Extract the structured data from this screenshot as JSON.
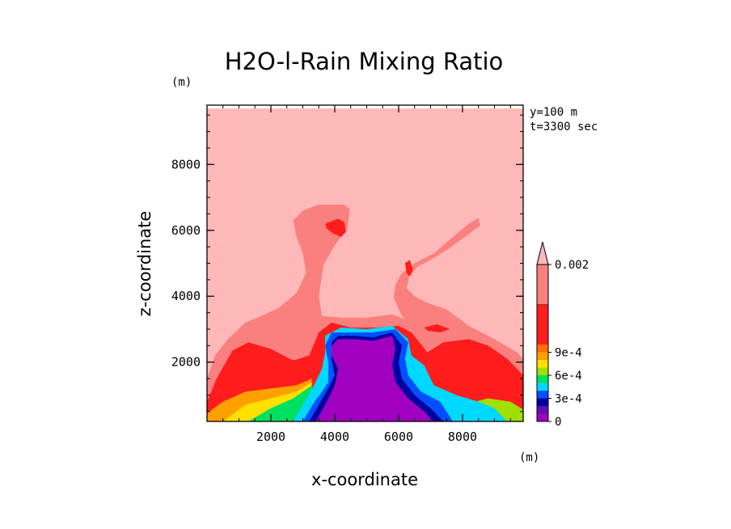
{
  "chart_data": {
    "type": "heatmap",
    "title": "H2O-l-Rain Mixing Ratio",
    "xlabel": "x-coordinate",
    "ylabel": "z-coordinate",
    "x_unit": "(m)",
    "y_unit": "(m)",
    "annotations": [
      "y=100 m",
      "t=3300 sec"
    ],
    "xlim": [
      0,
      10000
    ],
    "ylim": [
      0,
      10000
    ],
    "x_ticks": [
      2000,
      4000,
      6000,
      8000
    ],
    "y_ticks": [
      2000,
      4000,
      6000,
      8000
    ],
    "colorbar": {
      "labels": [
        {
          "text": "0.002",
          "value": 0.002
        },
        {
          "text": "9e-4",
          "value": 0.0009
        },
        {
          "text": "6e-4",
          "value": 0.0006
        },
        {
          "text": "3e-4",
          "value": 0.0003
        },
        {
          "text": "0",
          "value": 0
        }
      ],
      "levels": [
        {
          "upper": 0.0001,
          "color": "#a000c0"
        },
        {
          "upper": 0.0002,
          "color": "#6010b0"
        },
        {
          "upper": 0.0003,
          "color": "#0000a0"
        },
        {
          "upper": 0.0004,
          "color": "#0050ff"
        },
        {
          "upper": 0.0005,
          "color": "#00d8ff"
        },
        {
          "upper": 0.0006,
          "color": "#00e060"
        },
        {
          "upper": 0.0007,
          "color": "#a0e000"
        },
        {
          "upper": 0.0008,
          "color": "#ffe000"
        },
        {
          "upper": 0.0009,
          "color": "#ffa000"
        },
        {
          "upper": 0.001,
          "color": "#ff7000"
        },
        {
          "upper": 0.0015,
          "color": "#ff1c1c"
        },
        {
          "upper": 0.002,
          "color": "#fa8080"
        },
        {
          "upper": null,
          "color": "#ffb8b8"
        }
      ]
    },
    "field_regions": [
      {
        "level": "background",
        "color": "#ffb8b8",
        "polygon": [
          [
            0,
            0
          ],
          [
            10000,
            0
          ],
          [
            10000,
            9700
          ],
          [
            0,
            9700
          ]
        ]
      },
      {
        "level": "pink",
        "color": "#fa8080",
        "polygon": [
          [
            0,
            1500
          ],
          [
            250,
            2200
          ],
          [
            650,
            2700
          ],
          [
            1200,
            3200
          ],
          [
            1700,
            3400
          ],
          [
            2250,
            3650
          ],
          [
            2800,
            4100
          ],
          [
            3100,
            4700
          ],
          [
            3000,
            5300
          ],
          [
            2800,
            5800
          ],
          [
            2700,
            6300
          ],
          [
            3000,
            6600
          ],
          [
            3500,
            6780
          ],
          [
            4300,
            6780
          ],
          [
            4470,
            6650
          ],
          [
            4400,
            6050
          ],
          [
            4000,
            5550
          ],
          [
            3650,
            4950
          ],
          [
            3500,
            4000
          ],
          [
            3600,
            3400
          ],
          [
            4200,
            3350
          ],
          [
            5000,
            3350
          ],
          [
            5800,
            3450
          ],
          [
            6200,
            3300
          ],
          [
            6400,
            2900
          ],
          [
            6500,
            2650
          ],
          [
            6300,
            3100
          ],
          [
            6050,
            3500
          ],
          [
            5850,
            3950
          ],
          [
            5900,
            4350
          ],
          [
            6100,
            4700
          ],
          [
            6500,
            5000
          ],
          [
            7100,
            5300
          ],
          [
            7700,
            5800
          ],
          [
            8200,
            6200
          ],
          [
            8500,
            6380
          ],
          [
            8550,
            6150
          ],
          [
            8000,
            5750
          ],
          [
            7500,
            5400
          ],
          [
            7000,
            5100
          ],
          [
            6600,
            4900
          ],
          [
            6350,
            4650
          ],
          [
            6250,
            4250
          ],
          [
            6500,
            4000
          ],
          [
            6900,
            3800
          ],
          [
            7500,
            3600
          ],
          [
            8200,
            3100
          ],
          [
            9000,
            2700
          ],
          [
            9700,
            2300
          ],
          [
            10000,
            2000
          ],
          [
            10000,
            0
          ],
          [
            0,
            0
          ]
        ]
      },
      {
        "level": "red",
        "color": "#ff1c1c",
        "polygon": [
          [
            0,
            800
          ],
          [
            300,
            1500
          ],
          [
            800,
            2350
          ],
          [
            1300,
            2600
          ],
          [
            2000,
            2400
          ],
          [
            2700,
            2050
          ],
          [
            3200,
            2200
          ],
          [
            3500,
            2900
          ],
          [
            3900,
            3200
          ],
          [
            4500,
            3050
          ],
          [
            5300,
            3050
          ],
          [
            6000,
            3100
          ],
          [
            6400,
            2900
          ],
          [
            6900,
            2300
          ],
          [
            7400,
            2600
          ],
          [
            8200,
            2700
          ],
          [
            8800,
            2500
          ],
          [
            9400,
            2100
          ],
          [
            10000,
            1500
          ],
          [
            10000,
            0
          ],
          [
            0,
            0
          ]
        ]
      },
      {
        "level": "orange",
        "color": "#ffa000",
        "polygon": [
          [
            0,
            450
          ],
          [
            500,
            800
          ],
          [
            1200,
            1100
          ],
          [
            2000,
            1200
          ],
          [
            2800,
            1300
          ],
          [
            3300,
            1500
          ],
          [
            3100,
            1000
          ],
          [
            2800,
            500
          ],
          [
            2500,
            200
          ],
          [
            0,
            200
          ]
        ]
      },
      {
        "level": "yellow",
        "color": "#ffe000",
        "polygon": [
          [
            500,
            200
          ],
          [
            1200,
            700
          ],
          [
            2000,
            900
          ],
          [
            2800,
            1100
          ],
          [
            3300,
            1400
          ],
          [
            3200,
            900
          ],
          [
            2900,
            400
          ],
          [
            2500,
            200
          ]
        ]
      },
      {
        "level": "green",
        "color": "#00e060",
        "polygon": [
          [
            1300,
            200
          ],
          [
            2000,
            600
          ],
          [
            2700,
            900
          ],
          [
            3300,
            1300
          ],
          [
            3300,
            800
          ],
          [
            3000,
            350
          ],
          [
            2600,
            200
          ]
        ]
      },
      {
        "level": "light-green",
        "color": "#a0e000",
        "polygon": [
          [
            7400,
            200
          ],
          [
            8000,
            700
          ],
          [
            8800,
            900
          ],
          [
            9500,
            800
          ],
          [
            10000,
            500
          ],
          [
            10000,
            200
          ]
        ]
      },
      {
        "level": "cyan",
        "color": "#00d8ff",
        "polygon": [
          [
            2700,
            200
          ],
          [
            3000,
            700
          ],
          [
            3300,
            1200
          ],
          [
            3600,
            1800
          ],
          [
            3700,
            2300
          ],
          [
            3700,
            2800
          ],
          [
            4200,
            3050
          ],
          [
            5000,
            3000
          ],
          [
            5800,
            3100
          ],
          [
            6300,
            2700
          ],
          [
            6400,
            2200
          ],
          [
            6800,
            1900
          ],
          [
            7100,
            1300
          ],
          [
            7800,
            1000
          ],
          [
            8500,
            800
          ],
          [
            9000,
            600
          ],
          [
            9400,
            200
          ]
        ]
      },
      {
        "level": "blue",
        "color": "#0050ff",
        "polygon": [
          [
            3000,
            200
          ],
          [
            3300,
            700
          ],
          [
            3600,
            1100
          ],
          [
            3800,
            1400
          ],
          [
            3800,
            2000
          ],
          [
            3700,
            2500
          ],
          [
            3900,
            2900
          ],
          [
            4500,
            2900
          ],
          [
            5200,
            2900
          ],
          [
            5900,
            3000
          ],
          [
            6300,
            2600
          ],
          [
            6200,
            2100
          ],
          [
            6300,
            1600
          ],
          [
            6700,
            1100
          ],
          [
            7300,
            800
          ],
          [
            7700,
            200
          ]
        ]
      },
      {
        "level": "navy",
        "color": "#0000a0",
        "polygon": [
          [
            3200,
            200
          ],
          [
            3500,
            700
          ],
          [
            3800,
            1200
          ],
          [
            4000,
            1600
          ],
          [
            3900,
            2100
          ],
          [
            3900,
            2600
          ],
          [
            4100,
            2800
          ],
          [
            4600,
            2800
          ],
          [
            5200,
            2750
          ],
          [
            5800,
            2900
          ],
          [
            6100,
            2500
          ],
          [
            6000,
            2000
          ],
          [
            6100,
            1500
          ],
          [
            6500,
            1000
          ],
          [
            7000,
            600
          ],
          [
            7400,
            200
          ]
        ]
      },
      {
        "level": "magenta",
        "color": "#a000c0",
        "polygon": [
          [
            3400,
            200
          ],
          [
            3700,
            700
          ],
          [
            4000,
            1300
          ],
          [
            4100,
            1800
          ],
          [
            3900,
            2200
          ],
          [
            3900,
            2500
          ],
          [
            4100,
            2700
          ],
          [
            4600,
            2700
          ],
          [
            5200,
            2650
          ],
          [
            5800,
            2800
          ],
          [
            5900,
            2400
          ],
          [
            5800,
            1900
          ],
          [
            5900,
            1400
          ],
          [
            6300,
            900
          ],
          [
            6800,
            500
          ],
          [
            7100,
            200
          ]
        ]
      },
      {
        "level": "red-cell-1",
        "color": "#ff1c1c",
        "polygon": [
          [
            3700,
            6200
          ],
          [
            4100,
            6350
          ],
          [
            4300,
            6250
          ],
          [
            4350,
            5950
          ],
          [
            4200,
            5800
          ],
          [
            3950,
            5900
          ],
          [
            3750,
            6050
          ]
        ]
      },
      {
        "level": "red-cell-2",
        "color": "#ff1c1c",
        "polygon": [
          [
            6200,
            5000
          ],
          [
            6350,
            5100
          ],
          [
            6450,
            4800
          ],
          [
            6350,
            4600
          ],
          [
            6250,
            4700
          ]
        ]
      },
      {
        "level": "red-cell-3",
        "color": "#ff1c1c",
        "polygon": [
          [
            6800,
            3050
          ],
          [
            7200,
            3150
          ],
          [
            7600,
            3000
          ],
          [
            7300,
            2900
          ],
          [
            6900,
            2950
          ]
        ]
      }
    ]
  }
}
